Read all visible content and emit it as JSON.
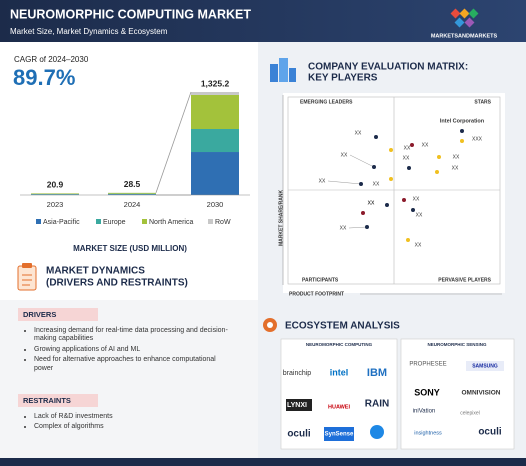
{
  "header": {
    "title": "NEUROMORPHIC COMPUTING MARKET",
    "subtitle": "Market Size, Market Dynamics & Ecosystem",
    "logo": "MARKETSANDMARKETS"
  },
  "cagr": {
    "label": "CAGR of 2024–2030",
    "value": "89.7%"
  },
  "chart_data": {
    "type": "bar",
    "stacked": true,
    "categories": [
      "2023",
      "2024",
      "2030"
    ],
    "series": [
      {
        "name": "Asia-Pacific",
        "color": "#2f6fb3",
        "values": [
          8,
          11,
          553
        ]
      },
      {
        "name": "Europe",
        "color": "#3aa99f",
        "values": [
          4,
          5.5,
          296
        ]
      },
      {
        "name": "North America",
        "color": "#a3c23b",
        "values": [
          8,
          11,
          438
        ]
      },
      {
        "name": "RoW",
        "color": "#c8c8c8",
        "values": [
          0.9,
          1,
          38.2
        ]
      }
    ],
    "totals": [
      20.9,
      28.5,
      1325.2
    ],
    "total_labels": [
      "20.9",
      "28.5",
      "1,325.2"
    ],
    "xlabel": "MARKET SIZE (USD MILLION)"
  },
  "dynamics": {
    "title": [
      "MARKET DYNAMICS",
      "(DRIVERS AND RESTRAINTS)"
    ],
    "drivers": {
      "label": "DRIVERS",
      "items": [
        "Increasing demand for real-time data processing and decision-making capabilities",
        "Growing applications of AI and ML",
        "Need for alternative approaches to enhance computational power"
      ]
    },
    "restraints": {
      "label": "RESTRAINTS",
      "items": [
        "Lack of R&D investments",
        "Complex of algorithms"
      ]
    }
  },
  "matrix": {
    "title": [
      "COMPANY EVALUATION MATRIX:",
      "KEY PLAYERS"
    ],
    "quadrants": [
      "EMERGING LEADERS",
      "STARS",
      "PARTICIPANTS",
      "PERVASIVE PLAYERS"
    ],
    "y_label": "MARKET SHARE/RANK",
    "x_label": "PRODUCT FOOTPRINT",
    "companies": [
      "XX",
      "Intel Corporation",
      "XXX",
      "XX",
      "XX",
      "XX",
      "XX",
      "XX",
      "XX",
      "XX",
      "XX",
      "XX",
      "XX",
      "XX",
      "XX",
      "XX",
      "XX"
    ]
  },
  "ecosystem": {
    "title": "ECOSYSTEM ANALYSIS",
    "groups": [
      {
        "name": "NEUROMORPHIC COMPUTING",
        "logos": [
          "brainchip",
          "intel",
          "IBM",
          "LYNXI",
          "HUAWEI",
          "RAIN",
          "oculi",
          "SynSense"
        ]
      },
      {
        "name": "NEUROMORPHIC SENSING",
        "logos": [
          "PROPHESEE",
          "SAMSUNG",
          "SONY",
          "OMNIVISION",
          "iniVation",
          "celepixel",
          "insightness",
          "oculi"
        ]
      }
    ]
  }
}
